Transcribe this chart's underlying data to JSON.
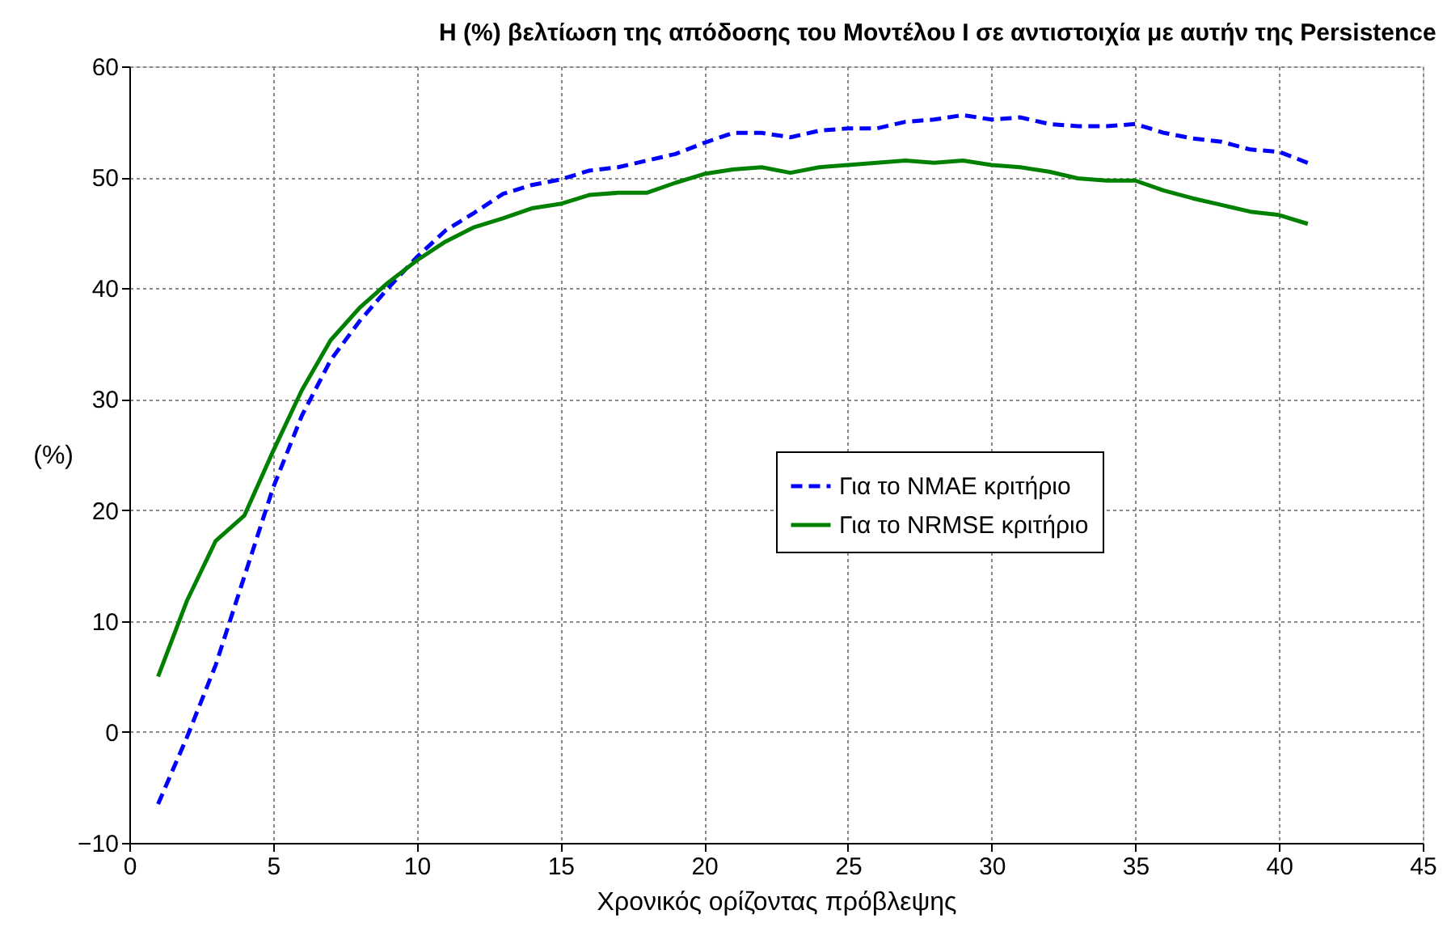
{
  "chart_data": {
    "type": "line",
    "title": "Η (%) βελτίωση της απόδοσης του Μοντέλου Ι σε αντιστοιχία με αυτήν της Persistence",
    "xlabel": "Χρονικός ορίζοντας πρόβλεψης",
    "ylabel": "(%)",
    "x": [
      1,
      2,
      3,
      4,
      5,
      6,
      7,
      8,
      9,
      10,
      11,
      12,
      13,
      14,
      15,
      16,
      17,
      18,
      19,
      20,
      21,
      22,
      23,
      24,
      25,
      26,
      27,
      28,
      29,
      30,
      31,
      32,
      33,
      34,
      35,
      36,
      37,
      38,
      39,
      40,
      41
    ],
    "series": [
      {
        "name": "Για το NMAE κριτήριο",
        "color": "#0000ff",
        "line_style": "dashed",
        "values": [
          -6.5,
          -0.5,
          6,
          14,
          22,
          28.5,
          33.5,
          37,
          40,
          42.8,
          45.2,
          46.8,
          48.5,
          49.3,
          49.8,
          50.6,
          50.9,
          51.5,
          52.1,
          53.1,
          54,
          54,
          53.6,
          54.2,
          54.4,
          54.4,
          55,
          55.2,
          55.6,
          55.2,
          55.4,
          54.8,
          54.6,
          54.6,
          54.8,
          54,
          53.5,
          53.2,
          52.5,
          52.3,
          51.3
        ]
      },
      {
        "name": "Για το NRMSE κριτήριο",
        "color": "#008000",
        "line_style": "solid",
        "values": [
          5,
          11.8,
          17.2,
          19.5,
          25.3,
          30.8,
          35.3,
          38.2,
          40.5,
          42.5,
          44.2,
          45.5,
          46.3,
          47.2,
          47.6,
          48.4,
          48.6,
          48.6,
          49.5,
          50.3,
          50.7,
          50.9,
          50.4,
          50.9,
          51.1,
          51.3,
          51.5,
          51.3,
          51.5,
          51.1,
          50.9,
          50.5,
          49.9,
          49.7,
          49.7,
          48.8,
          48.1,
          47.5,
          46.9,
          46.6,
          45.8
        ]
      }
    ],
    "xlim": [
      0,
      45
    ],
    "xticks": [
      0,
      5,
      10,
      15,
      20,
      25,
      30,
      35,
      40,
      45
    ],
    "ylim": [
      -10,
      60
    ],
    "yticks": [
      -10,
      0,
      10,
      20,
      30,
      40,
      50,
      60
    ],
    "grid": true,
    "legend": "right",
    "marker": "none"
  }
}
